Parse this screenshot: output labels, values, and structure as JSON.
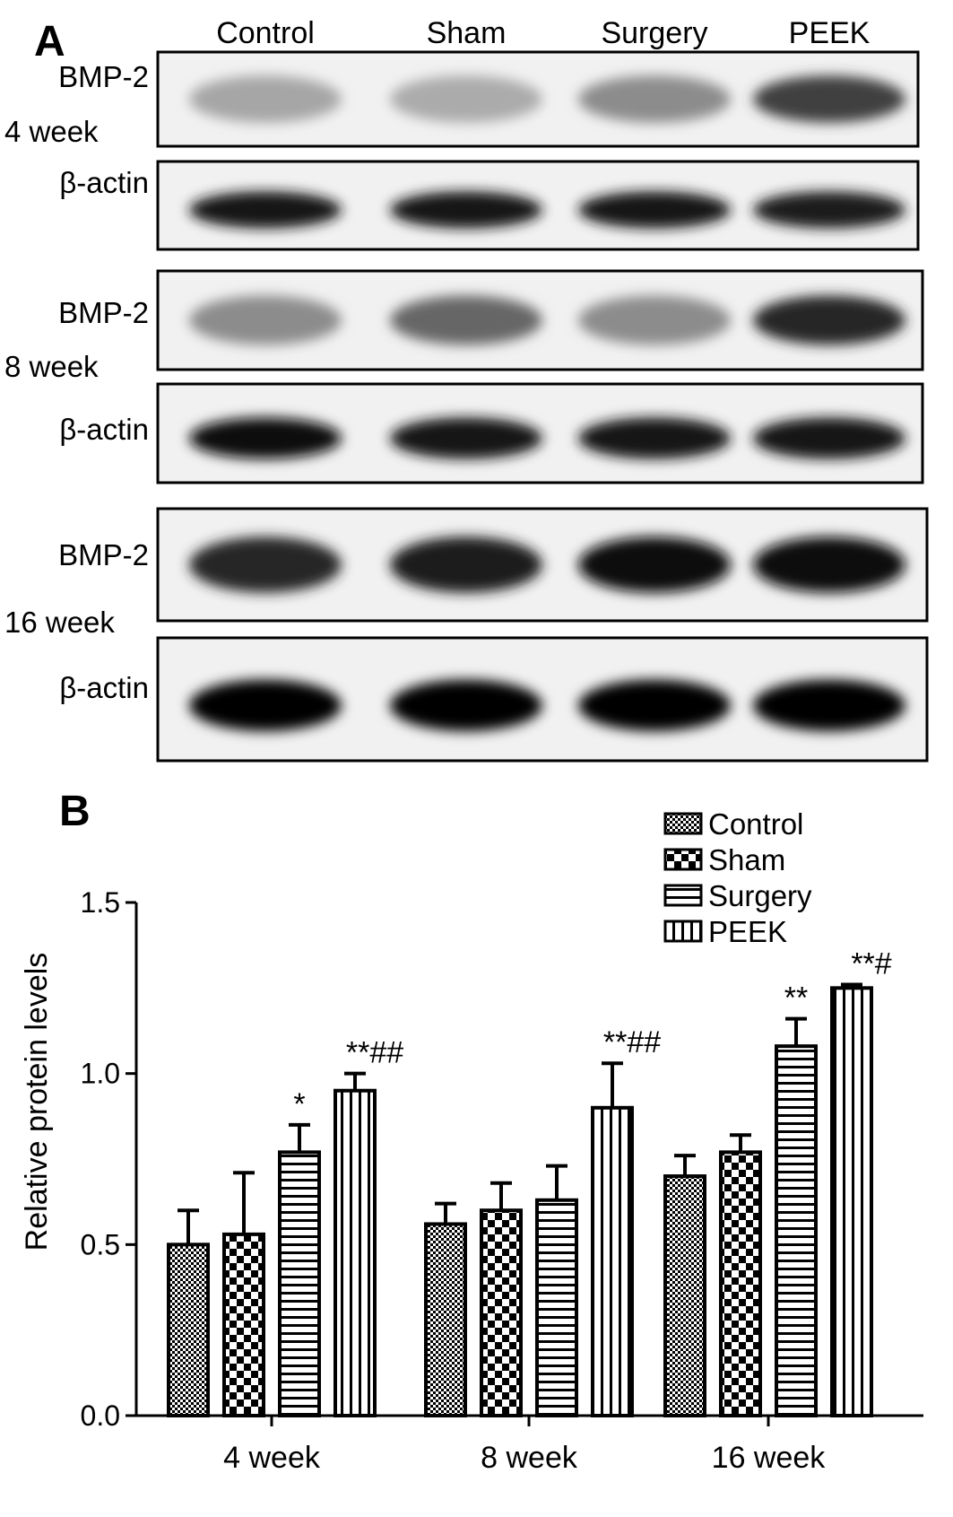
{
  "panel_a": {
    "label": "A",
    "lanes": [
      "Control",
      "Sham",
      "Surgery",
      "PEEK"
    ],
    "blots": [
      {
        "protein": "BMP-2",
        "timepoint": "4 week",
        "intensity": [
          0.35,
          0.33,
          0.45,
          0.75
        ]
      },
      {
        "protein": "β-actin",
        "timepoint": "",
        "intensity": [
          0.9,
          0.9,
          0.9,
          0.88
        ]
      },
      {
        "protein": "BMP-2",
        "timepoint": "8 week",
        "intensity": [
          0.45,
          0.6,
          0.45,
          0.85
        ]
      },
      {
        "protein": "β-actin",
        "timepoint": "",
        "intensity": [
          0.95,
          0.9,
          0.9,
          0.9
        ]
      },
      {
        "protein": "BMP-2",
        "timepoint": "16 week",
        "intensity": [
          0.85,
          0.88,
          0.95,
          0.95
        ]
      },
      {
        "protein": "β-actin",
        "timepoint": "",
        "intensity": [
          1.0,
          1.0,
          1.0,
          1.0
        ]
      }
    ]
  },
  "panel_b_label": "B",
  "chart_data": {
    "type": "bar",
    "categories": [
      "4 week",
      "8 week",
      "16 week"
    ],
    "series": [
      {
        "name": "Control",
        "pattern": "fine-check",
        "values": [
          0.5,
          0.56,
          0.7
        ],
        "errors": [
          0.1,
          0.06,
          0.06
        ],
        "annotations": [
          "",
          "",
          ""
        ]
      },
      {
        "name": "Sham",
        "pattern": "coarse-check",
        "values": [
          0.53,
          0.6,
          0.77
        ],
        "errors": [
          0.18,
          0.08,
          0.05
        ],
        "annotations": [
          "",
          "",
          ""
        ]
      },
      {
        "name": "Surgery",
        "pattern": "horizontal-lines",
        "values": [
          0.77,
          0.63,
          1.08
        ],
        "errors": [
          0.08,
          0.1,
          0.08
        ],
        "annotations": [
          "*",
          "",
          "**"
        ]
      },
      {
        "name": "PEEK",
        "pattern": "vertical-lines",
        "values": [
          0.95,
          0.9,
          1.25
        ],
        "errors": [
          0.05,
          0.13,
          0.01
        ],
        "annotations": [
          "**##",
          "**##",
          "**#"
        ]
      }
    ],
    "ylabel": "Relative protein levels",
    "xlabel": "",
    "ylim": [
      0,
      1.5
    ],
    "yticks": [
      "0.0",
      "0.5",
      "1.0",
      "1.5"
    ],
    "legend_position": "top-right",
    "grid": false
  }
}
